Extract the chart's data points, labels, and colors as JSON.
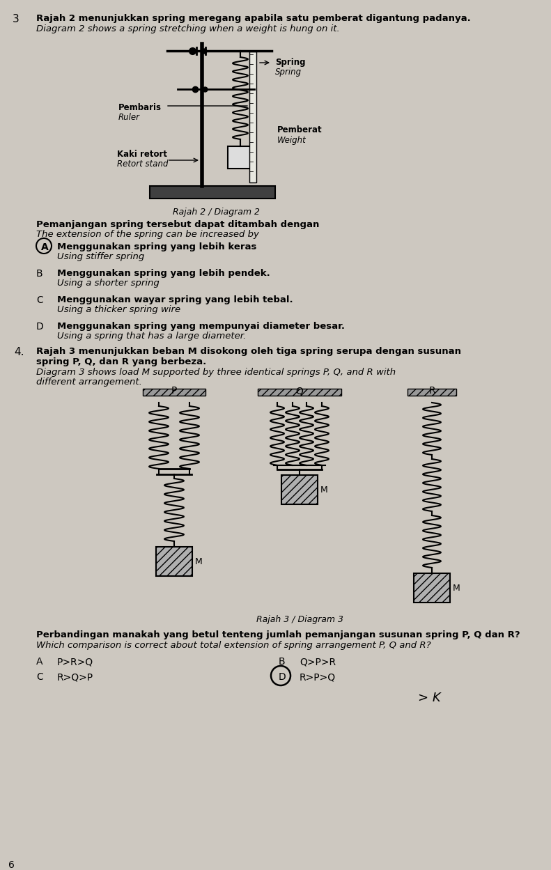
{
  "bg_color": "#cdc8c0",
  "q3_number": "3",
  "q3_malay": "Rajah 2 menunjukkan spring meregang apabila satu pemberat digantung padanya.",
  "q3_english": "Diagram 2 shows a spring stretching when a weight is hung on it.",
  "q3_subtext_malay": "Pemanjangan spring tersebut dapat ditambah dengan",
  "q3_subtext_english": "The extension of the spring can be increased by",
  "q3_options": [
    [
      "A",
      "Menggunakan spring yang lebih keras",
      "Using stiffer spring"
    ],
    [
      "B",
      "Menggunakan spring yang lebih pendek.",
      "Using a shorter spring"
    ],
    [
      "C",
      "Menggunakan wayar spring yang lebih tebal.",
      "Using a thicker spring wire"
    ],
    [
      "D",
      "Menggunakan spring yang mempunyai diameter besar.",
      "Using a spring that has a large diameter."
    ]
  ],
  "diagram2_caption": "Rajah 2 / Diagram 2",
  "q4_number": "4.",
  "q4_malay1": "Rajah 3 menunjukkan beban M disokong oleh tiga spring serupa dengan susunan",
  "q4_malay2": "spring P, Q, dan R yang berbeza.",
  "q4_english1": "Diagram 3 shows load M supported by three identical springs P, Q, and R with",
  "q4_english2": "different arrangement.",
  "diagram3_caption": "Rajah 3 / Diagram 3",
  "q4_question_malay": "Perbandingan manakah yang betul tenteng jumlah pemanjangan susunan spring P, Q dan R?",
  "q4_question_english": "Which comparison is correct about total extension of spring arrangement P, Q and R?",
  "answer_A": "P>R>Q",
  "answer_B": "Q>P>R",
  "answer_C": "R>Q>P",
  "answer_D": "R>P>Q",
  "annotation": "> K"
}
